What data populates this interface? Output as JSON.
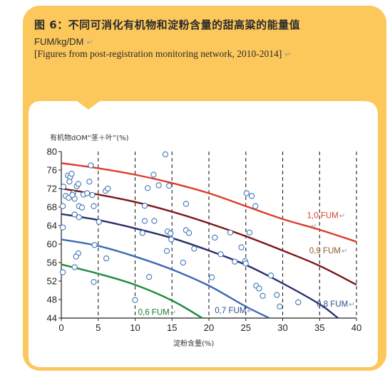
{
  "header": {
    "title": "图 6：不同可消化有机物和淀粉含量的甜高粱的能量值",
    "subtitle": "FUM/kg/DM",
    "source": "[Figures from post-registration monitoring network, 2010-2014]",
    "mark": "↵"
  },
  "colors": {
    "background": "#fcc75b",
    "panel": "#ffffff",
    "title_text": "#2b2b2b",
    "point_stroke": "#3f78b8",
    "dashed_grid": "#222222"
  },
  "chart_data": {
    "type": "scatter",
    "ylabel": "有机物dOM“茎＋叶”(%)",
    "xlabel": "淀粉含量(%)",
    "xlim": [
      0,
      40
    ],
    "ylim": [
      44,
      80
    ],
    "xticks": [
      0,
      5,
      10,
      15,
      20,
      25,
      30,
      35,
      40
    ],
    "yticks": [
      44,
      48,
      52,
      56,
      60,
      64,
      68,
      72,
      76,
      80
    ],
    "grid": "vertical dashed lines at each x tick",
    "points": [
      [
        0.3,
        72.4
      ],
      [
        0.6,
        70.4
      ],
      [
        0.9,
        74.8
      ],
      [
        1.0,
        70.0
      ],
      [
        1.2,
        74.5
      ],
      [
        1.1,
        73.5
      ],
      [
        1.4,
        75.2
      ],
      [
        1.6,
        71.0
      ],
      [
        1.8,
        69.8
      ],
      [
        1.5,
        70.6
      ],
      [
        2.1,
        72.5
      ],
      [
        2.3,
        73.0
      ],
      [
        2.4,
        68.2
      ],
      [
        2.8,
        67.9
      ],
      [
        3.0,
        70.7
      ],
      [
        3.5,
        71.0
      ],
      [
        3.8,
        73.5
      ],
      [
        4.0,
        77.0
      ],
      [
        4.2,
        70.6
      ],
      [
        4.4,
        68.2
      ],
      [
        1.8,
        66.4
      ],
      [
        2.4,
        65.8
      ],
      [
        0.2,
        68.2
      ],
      [
        0.2,
        63.6
      ],
      [
        2.3,
        58.0
      ],
      [
        2.0,
        57.3
      ],
      [
        1.8,
        55.0
      ],
      [
        4.5,
        59.8
      ],
      [
        5.1,
        64.8
      ],
      [
        6.0,
        71.5
      ],
      [
        6.3,
        72.0
      ],
      [
        6.1,
        56.9
      ],
      [
        0.2,
        53.9
      ],
      [
        4.4,
        51.8
      ],
      [
        10.0,
        47.9
      ],
      [
        11.0,
        62.4
      ],
      [
        11.3,
        65.0
      ],
      [
        11.3,
        68.3
      ],
      [
        11.7,
        72.1
      ],
      [
        11.9,
        52.9
      ],
      [
        12.5,
        75.0
      ],
      [
        12.6,
        65.0
      ],
      [
        13.2,
        72.7
      ],
      [
        14.1,
        79.4
      ],
      [
        14.4,
        62.7
      ],
      [
        14.6,
        72.6
      ],
      [
        14.8,
        62.3
      ],
      [
        14.9,
        61.0
      ],
      [
        14.3,
        58.5
      ],
      [
        16.5,
        56.0
      ],
      [
        16.9,
        68.7
      ],
      [
        16.9,
        63.0
      ],
      [
        17.3,
        62.4
      ],
      [
        18.0,
        59.0
      ],
      [
        20.4,
        52.8
      ],
      [
        20.8,
        61.4
      ],
      [
        21.6,
        57.8
      ],
      [
        22.9,
        62.5
      ],
      [
        23.5,
        56.2
      ],
      [
        24.4,
        59.3
      ],
      [
        24.9,
        56.3
      ],
      [
        25.0,
        55.8
      ],
      [
        25.1,
        71.0
      ],
      [
        25.5,
        62.5
      ],
      [
        25.8,
        70.4
      ],
      [
        26.3,
        68.2
      ],
      [
        26.4,
        51.0
      ],
      [
        26.8,
        50.4
      ],
      [
        27.3,
        48.8
      ],
      [
        28.4,
        53.2
      ],
      [
        29.2,
        49.0
      ],
      [
        29.6,
        46.5
      ],
      [
        32.1,
        47.4
      ]
    ],
    "series": [
      {
        "name": "1,0 FUM",
        "color": "#e03a2c",
        "x": [
          0,
          5,
          10,
          15,
          20,
          25,
          30,
          35,
          40
        ],
        "y": [
          77.5,
          76.4,
          75.0,
          73.2,
          71.0,
          68.2,
          65.4,
          63.1,
          60.5
        ]
      },
      {
        "name": "0,9 FUM",
        "color": "#7c1518",
        "x": [
          0,
          5,
          10,
          15,
          20,
          25,
          30,
          35,
          40
        ],
        "y": [
          72.0,
          70.7,
          69.1,
          67.0,
          64.5,
          61.7,
          58.6,
          55.3,
          51.2
        ]
      },
      {
        "name": "0,8 FUM",
        "color": "#2b2f6b",
        "x": [
          0,
          5,
          10,
          15,
          20,
          25,
          30,
          35,
          37.5
        ],
        "y": [
          66.5,
          65.2,
          63.4,
          61.3,
          58.6,
          55.5,
          51.5,
          47.0,
          44.0
        ]
      },
      {
        "name": "0,7 FUM",
        "color": "#3a6ab4",
        "x": [
          0,
          5,
          10,
          15,
          20,
          25,
          28.2
        ],
        "y": [
          61.0,
          59.6,
          57.3,
          54.5,
          51.0,
          46.5,
          44.0
        ]
      },
      {
        "name": "0,6 FUM",
        "color": "#1f8a3d",
        "x": [
          0,
          5,
          10,
          15,
          19.1
        ],
        "y": [
          55.6,
          53.6,
          51.2,
          47.8,
          44.0
        ]
      }
    ],
    "series_label_colors": {
      "1,0 FUM": "#d6402e",
      "0,9 FUM": "#8b5a2b",
      "0,8 FUM": "#2a4f8f",
      "0,7 FUM": "#2a4f8f",
      "0,6 FUM": "#1f7a35"
    }
  }
}
